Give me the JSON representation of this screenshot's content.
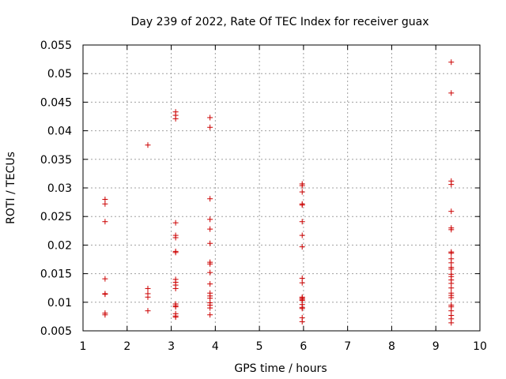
{
  "chart_data": {
    "type": "scatter",
    "title": "Day 239 of 2022, Rate Of TEC Index for receiver guax",
    "xlabel": "GPS time / hours",
    "ylabel": "ROTI / TECUs",
    "xlim": [
      1,
      10
    ],
    "ylim": [
      0.005,
      0.055
    ],
    "xticks": [
      "1",
      "2",
      "3",
      "4",
      "5",
      "6",
      "7",
      "8",
      "9",
      "10"
    ],
    "yticks": [
      "0.005",
      "0.01",
      "0.015",
      "0.02",
      "0.025",
      "0.03",
      "0.035",
      "0.04",
      "0.045",
      "0.05",
      "0.055"
    ],
    "grid": true,
    "marker": "plus",
    "color": "#cc0000",
    "series": [
      {
        "x": [
          1.5,
          1.5,
          1.5,
          1.5,
          1.5,
          1.5,
          1.5,
          1.5,
          2.47,
          2.47,
          2.47,
          2.47,
          2.47,
          3.1,
          3.1,
          3.1,
          3.1,
          3.1,
          3.1,
          3.1,
          3.1,
          3.1,
          3.1,
          3.1,
          3.1,
          3.1,
          3.1,
          3.1,
          3.1,
          3.1,
          3.1,
          3.88,
          3.88,
          3.88,
          3.88,
          3.88,
          3.88,
          3.88,
          3.88,
          3.88,
          3.88,
          3.88,
          3.88,
          3.88,
          3.88,
          3.88,
          3.88,
          3.88,
          5.97,
          5.97,
          5.97,
          5.97,
          5.97,
          5.97,
          5.97,
          5.97,
          5.97,
          5.97,
          5.97,
          5.97,
          5.97,
          5.97,
          5.97,
          5.97,
          5.97,
          5.97,
          5.97,
          9.35,
          9.35,
          9.35,
          9.35,
          9.35,
          9.35,
          9.35,
          9.35,
          9.35,
          9.35,
          9.35,
          9.35,
          9.35,
          9.35,
          9.35,
          9.35,
          9.35,
          9.35,
          9.35,
          9.35,
          9.35,
          9.35,
          9.35,
          9.35,
          9.35,
          9.35,
          9.35
        ],
        "y": [
          0.028,
          0.0272,
          0.0241,
          0.0141,
          0.0115,
          0.0114,
          0.0081,
          0.0078,
          0.0375,
          0.0124,
          0.0115,
          0.0109,
          0.0085,
          0.0433,
          0.0427,
          0.0421,
          0.0239,
          0.0217,
          0.0213,
          0.0189,
          0.0187,
          0.014,
          0.0135,
          0.013,
          0.0124,
          0.0097,
          0.0094,
          0.0092,
          0.008,
          0.0076,
          0.0074,
          0.0423,
          0.0406,
          0.0281,
          0.0245,
          0.0228,
          0.0203,
          0.017,
          0.0167,
          0.0152,
          0.0132,
          0.0116,
          0.0111,
          0.0107,
          0.0099,
          0.0095,
          0.009,
          0.0078,
          0.0307,
          0.0304,
          0.0293,
          0.0272,
          0.027,
          0.0241,
          0.0217,
          0.0197,
          0.0142,
          0.0134,
          0.0109,
          0.0107,
          0.0105,
          0.0103,
          0.0096,
          0.0091,
          0.0089,
          0.0073,
          0.0066,
          0.052,
          0.0466,
          0.0312,
          0.0306,
          0.0259,
          0.023,
          0.0227,
          0.0188,
          0.0186,
          0.0176,
          0.0169,
          0.0161,
          0.0158,
          0.0149,
          0.0145,
          0.0139,
          0.0133,
          0.0125,
          0.0116,
          0.0112,
          0.0108,
          0.0095,
          0.0092,
          0.0085,
          0.0077,
          0.0071,
          0.0064
        ]
      }
    ]
  }
}
